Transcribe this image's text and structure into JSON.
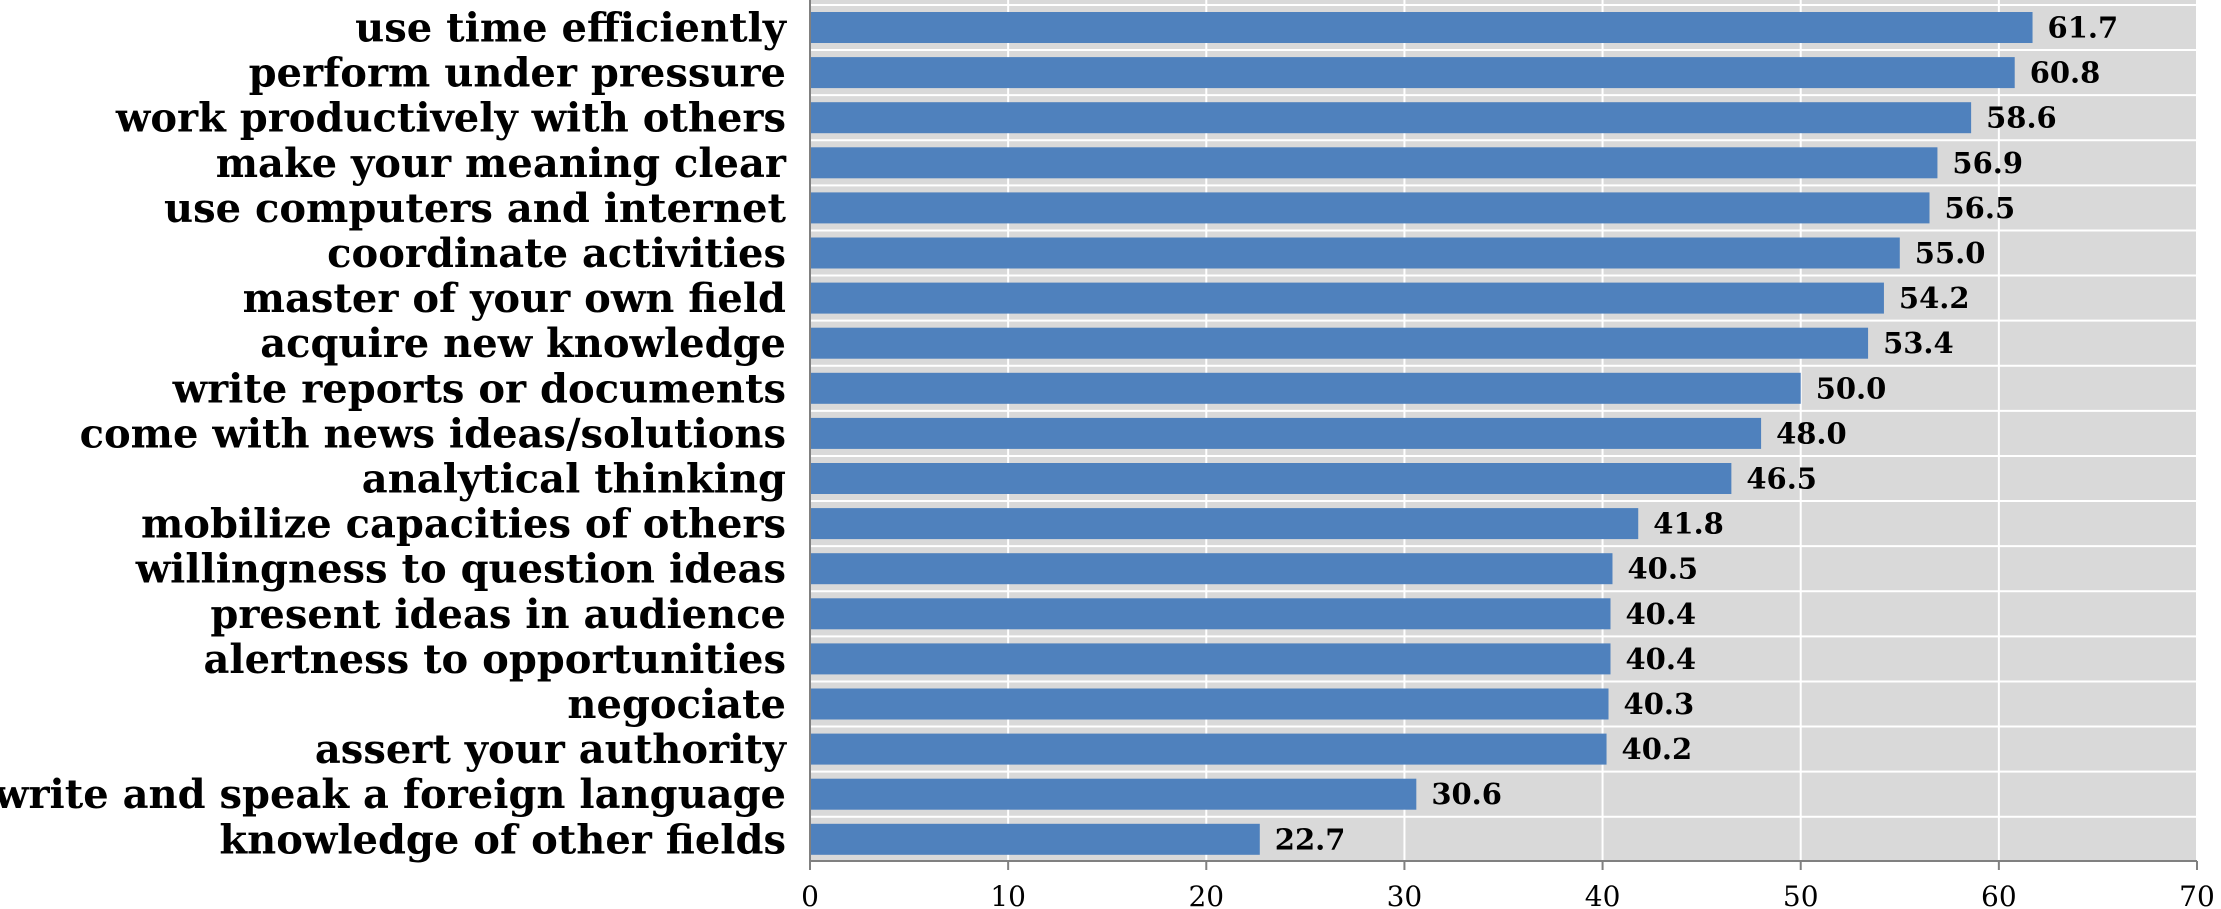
{
  "chart_data": {
    "type": "bar",
    "orientation": "horizontal",
    "title": "",
    "xlabel": "",
    "ylabel": "",
    "xlim": [
      0,
      70
    ],
    "x_ticks": [
      0,
      10,
      20,
      30,
      40,
      50,
      60,
      70
    ],
    "grid": true,
    "legend": "none",
    "bar_color": "#4f81bd",
    "plot_background": "#d9d9d9",
    "categories": [
      "use time efficiently",
      "perform under pressure",
      "work productively with others",
      "make your meaning clear",
      "use computers and internet",
      "coordinate activities",
      "master of your own field",
      "acquire new knowledge",
      "write reports or documents",
      "come with news ideas/solutions",
      "analytical thinking",
      "mobilize capacities of others",
      "willingness to question ideas",
      "present ideas in audience",
      "alertness to opportunities",
      "negociate",
      "assert your authority",
      "write and speak a foreign language",
      "knowledge of other fields"
    ],
    "values": [
      61.7,
      60.8,
      58.6,
      56.9,
      56.5,
      55.0,
      54.2,
      53.4,
      50.0,
      48.0,
      46.5,
      41.8,
      40.5,
      40.4,
      40.4,
      40.3,
      40.2,
      30.6,
      22.7
    ],
    "value_labels": [
      "61.7",
      "60.8",
      "58.6",
      "56.9",
      "56.5",
      "55.0",
      "54.2",
      "53.4",
      "50.0",
      "48.0",
      "46.5",
      "41.8",
      "40.5",
      "40.4",
      "40.4",
      "40.3",
      "40.2",
      "30.6",
      "22.7"
    ]
  }
}
